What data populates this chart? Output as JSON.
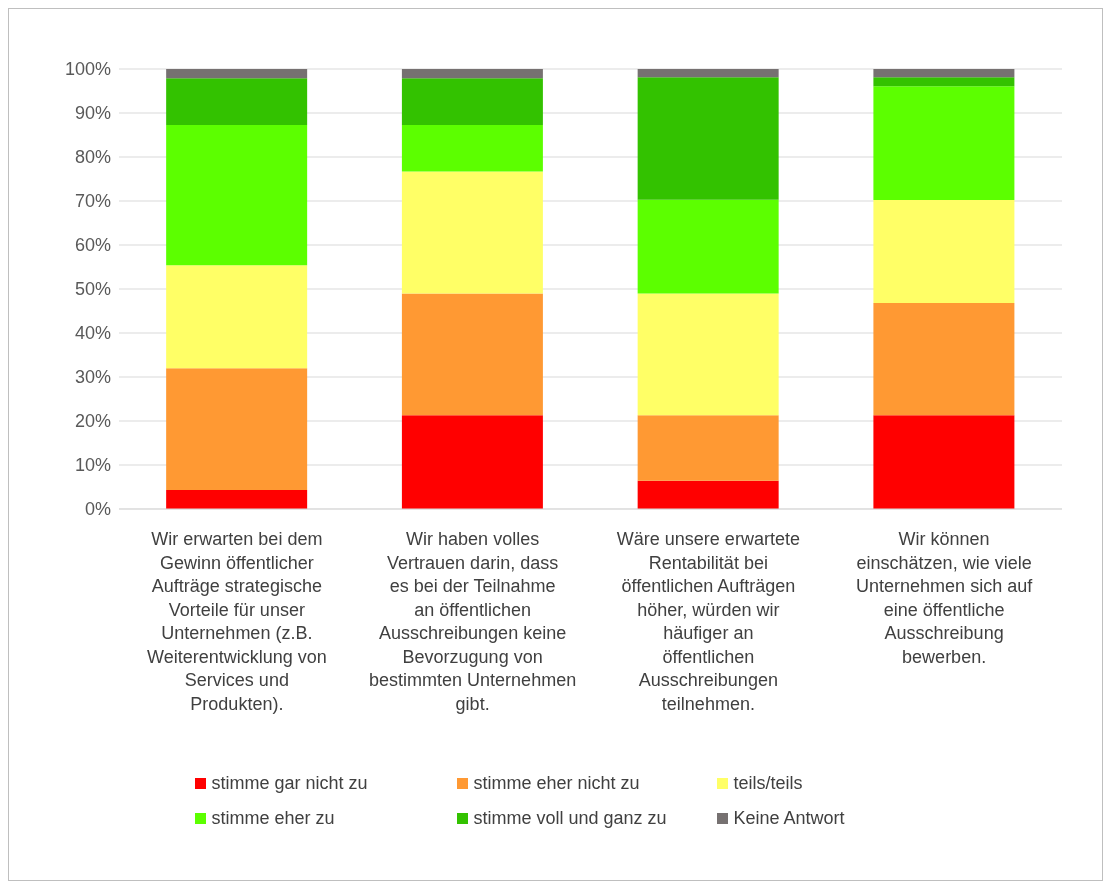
{
  "chart_data": {
    "type": "bar",
    "stacked": true,
    "categories": [
      "Wir erwarten bei dem Gewinn öffentlicher Aufträge strategische Vorteile für unser Unternehmen (z.B. Weiterentwicklung von Services und Produkten).",
      "Wir haben volles Vertrauen darin, dass es bei der Teilnahme an öffentlichen Ausschreibungen keine Bevorzugung von bestimmten Unternehmen gibt.",
      "Wäre unsere erwartete Rentabilität bei öffentlichen Aufträgen höher, würden wir häufiger an öffentlichen Ausschreibungen teilnehmen.",
      "Wir können einschätzen, wie viele Unternehmen sich auf eine öffentliche Ausschreibung bewerben."
    ],
    "series": [
      {
        "name": "stimme gar nicht zu",
        "color": "#ff0000",
        "values": [
          4.3,
          21.3,
          6.4,
          21.3
        ]
      },
      {
        "name": "stimme eher nicht zu",
        "color": "#ff9933",
        "values": [
          27.7,
          27.7,
          14.9,
          25.5
        ]
      },
      {
        "name": "teils/teils",
        "color": "#ffff66",
        "values": [
          23.4,
          27.7,
          27.7,
          23.4
        ]
      },
      {
        "name": "stimme eher zu",
        "color": "#5cff00",
        "values": [
          31.9,
          10.6,
          21.3,
          25.9
        ]
      },
      {
        "name": "stimme voll und ganz zu",
        "color": "#33c200",
        "values": [
          10.6,
          10.6,
          27.8,
          2.0
        ]
      },
      {
        "name": "Keine Antwort",
        "color": "#767171",
        "values": [
          2.1,
          2.1,
          1.9,
          1.9
        ]
      }
    ],
    "ylim": [
      0,
      100
    ],
    "yticks": [
      {
        "value": 0,
        "label": "0%"
      },
      {
        "value": 10,
        "label": "10%"
      },
      {
        "value": 20,
        "label": "20%"
      },
      {
        "value": 30,
        "label": "30%"
      },
      {
        "value": 40,
        "label": "40%"
      },
      {
        "value": 50,
        "label": "50%"
      },
      {
        "value": 60,
        "label": "60%"
      },
      {
        "value": 70,
        "label": "70%"
      },
      {
        "value": 80,
        "label": "80%"
      },
      {
        "value": 90,
        "label": "90%"
      },
      {
        "value": 100,
        "label": "100%"
      }
    ],
    "grid": "y",
    "legend": "bottom"
  }
}
